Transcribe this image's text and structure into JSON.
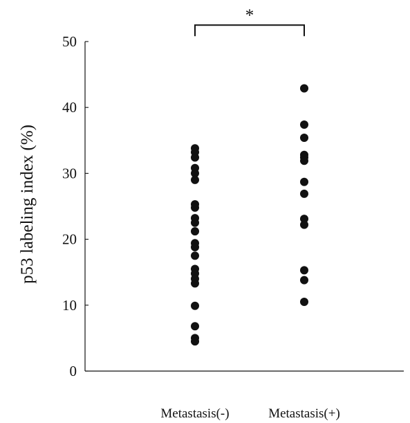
{
  "chart_data": {
    "type": "scatter",
    "title": "",
    "xlabel": "",
    "ylabel": "p53 labeling index (%)",
    "categories": [
      "Metastasis(-)",
      "Metastasis(+)"
    ],
    "ylim": [
      0,
      50
    ],
    "yticks": [
      0,
      10,
      20,
      30,
      40,
      50
    ],
    "grid": false,
    "legend": "none",
    "point_color": "#111111",
    "annotations": [
      {
        "text": "*",
        "between": [
          "Metastasis(-)",
          "Metastasis(+)"
        ],
        "bracket_value": 52.5
      }
    ],
    "series": [
      {
        "category": "Metastasis(-)",
        "values": [
          33.8,
          33.2,
          32.4,
          30.8,
          30.0,
          29.0,
          25.3,
          24.8,
          23.2,
          22.5,
          21.2,
          19.4,
          18.8,
          17.5,
          15.5,
          14.8,
          14.0,
          13.3,
          9.9,
          6.8,
          5.0,
          4.5
        ]
      },
      {
        "category": "Metastasis(+)",
        "values": [
          42.9,
          37.4,
          35.4,
          32.8,
          32.4,
          31.9,
          28.7,
          26.9,
          23.1,
          22.2,
          15.3,
          13.8,
          10.5
        ]
      }
    ]
  }
}
